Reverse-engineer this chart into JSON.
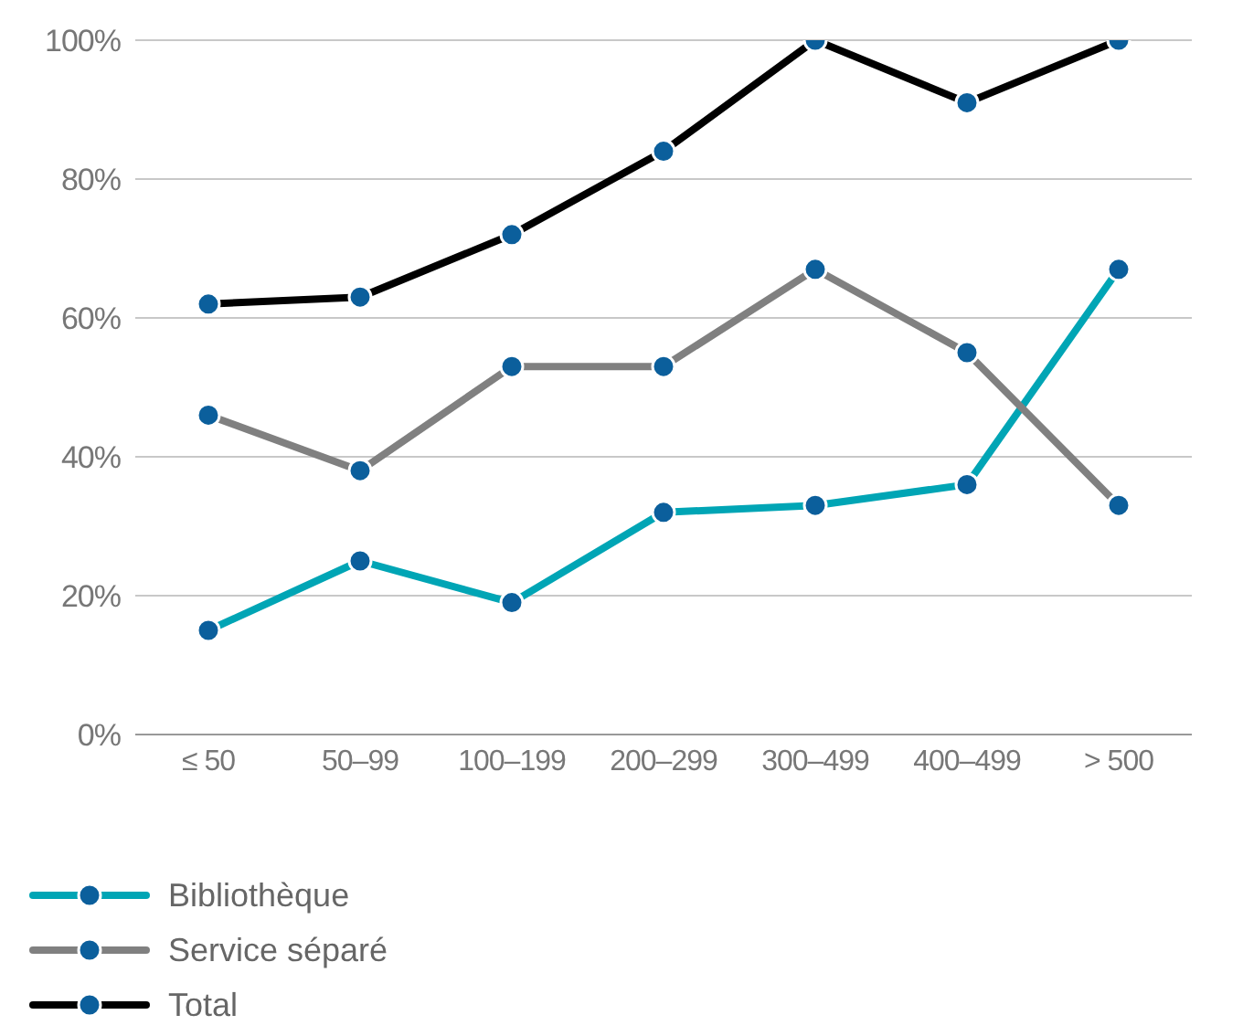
{
  "chart_data": {
    "type": "line",
    "categories": [
      "≤ 50",
      "50–99",
      "100–199",
      "200–299",
      "300–499",
      "400–499",
      "> 500"
    ],
    "series": [
      {
        "name": "Bibliothèque",
        "color": "#00a5b5",
        "values": [
          15,
          25,
          19,
          32,
          33,
          36,
          67
        ]
      },
      {
        "name": "Service séparé",
        "color": "#808080",
        "values": [
          46,
          38,
          53,
          53,
          67,
          55,
          33
        ]
      },
      {
        "name": "Total",
        "color": "#000000",
        "values": [
          62,
          63,
          72,
          84,
          100,
          91,
          100
        ]
      }
    ],
    "ylim": [
      0,
      100
    ],
    "yticks": [
      {
        "value": 0,
        "label": "0%"
      },
      {
        "value": 20,
        "label": "20%"
      },
      {
        "value": 40,
        "label": "40%"
      },
      {
        "value": 60,
        "label": "60%"
      },
      {
        "value": 80,
        "label": "80%"
      },
      {
        "value": 100,
        "label": "100%"
      }
    ],
    "grid": "y",
    "legend": "bottom left",
    "marker": "circle",
    "line_style": "solid"
  }
}
